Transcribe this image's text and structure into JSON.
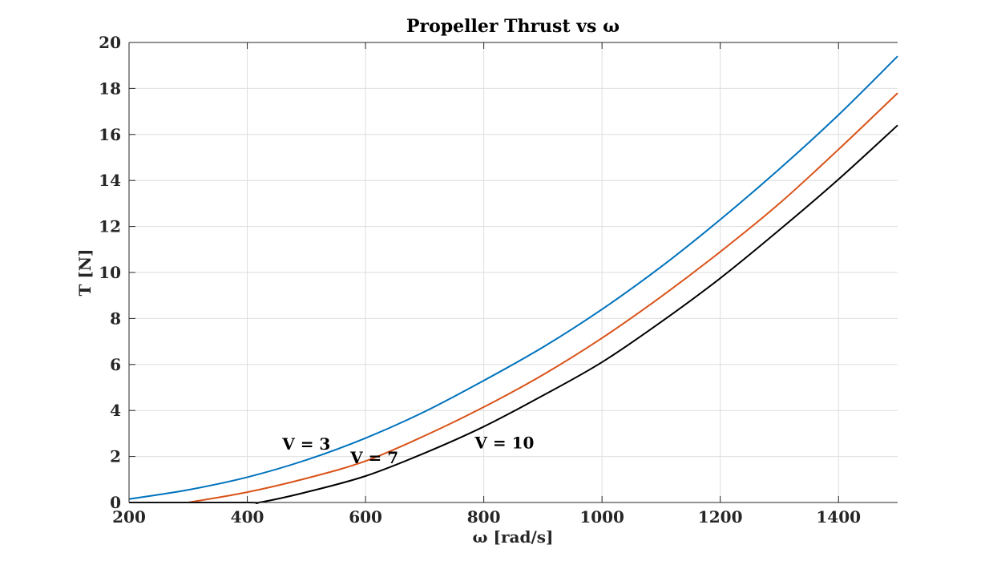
{
  "chart_data": {
    "type": "line",
    "title": "Propeller Thrust vs ω",
    "xlabel": "ω [rad/s]",
    "ylabel": "T [N]",
    "xlim": [
      200,
      1500
    ],
    "ylim": [
      0,
      20
    ],
    "xticks": [
      200,
      400,
      600,
      800,
      1000,
      1200,
      1400
    ],
    "yticks": [
      0,
      2,
      4,
      6,
      8,
      10,
      12,
      14,
      16,
      18,
      20
    ],
    "grid": true,
    "box": "left-bottom-top",
    "series": [
      {
        "name": "V = 3",
        "color": "#0072BD",
        "x": [
          200,
          300,
          400,
          500,
          600,
          700,
          800,
          900,
          1000,
          1100,
          1200,
          1300,
          1400,
          1500
        ],
        "y": [
          0.15,
          0.55,
          1.1,
          1.85,
          2.8,
          3.95,
          5.3,
          6.75,
          8.4,
          10.25,
          12.3,
          14.5,
          16.85,
          19.4
        ]
      },
      {
        "name": "V = 7",
        "color": "#D95319",
        "x": [
          300,
          400,
          500,
          600,
          700,
          800,
          900,
          1000,
          1100,
          1200,
          1300,
          1400,
          1500
        ],
        "y": [
          0.0,
          0.45,
          1.05,
          1.8,
          2.9,
          4.15,
          5.55,
          7.15,
          8.95,
          10.9,
          13.0,
          15.35,
          17.8
        ]
      },
      {
        "name": "V = 10",
        "color": "#000000",
        "x": [
          200,
          400,
          420,
          500,
          600,
          700,
          800,
          900,
          1000,
          1100,
          1200,
          1300,
          1400,
          1500
        ],
        "y": [
          0.0,
          0.0,
          0.0,
          0.45,
          1.15,
          2.15,
          3.3,
          4.65,
          6.1,
          7.85,
          9.75,
          11.85,
          14.05,
          16.4
        ]
      }
    ],
    "annotations": [
      {
        "text": "V = 3",
        "x": 500,
        "y": 2.55
      },
      {
        "text": "V = 7",
        "x": 615,
        "y": 1.95
      },
      {
        "text": "V = 10",
        "x": 835,
        "y": 2.6
      }
    ]
  }
}
